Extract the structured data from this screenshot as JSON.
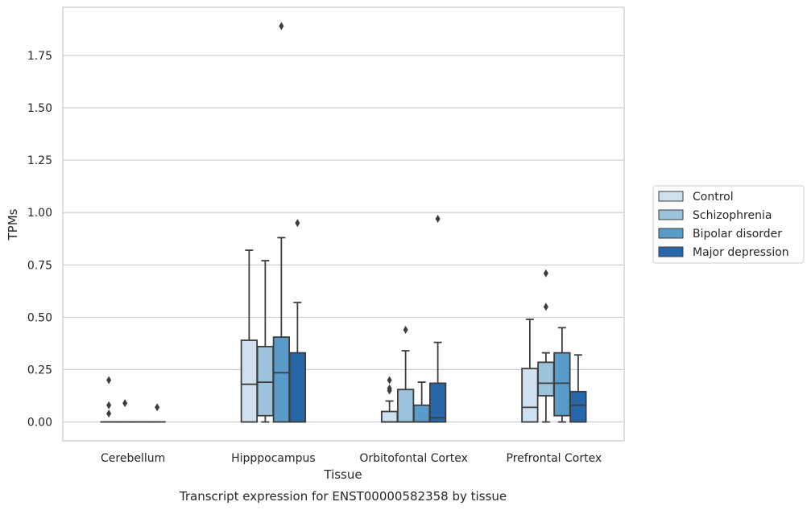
{
  "chart_data": {
    "type": "box",
    "xlabel": "Tissue",
    "ylabel": "TPMs",
    "caption": "Transcript expression for ENST00000582358 by tissue",
    "ylim": [
      -0.09,
      1.98
    ],
    "yticks": [
      0.0,
      0.25,
      0.5,
      0.75,
      1.0,
      1.25,
      1.5,
      1.75
    ],
    "ytick_labels": [
      "0.00",
      "0.25",
      "0.50",
      "0.75",
      "1.00",
      "1.25",
      "1.50",
      "1.75"
    ],
    "grid": true,
    "legend_position": "right",
    "categories": [
      "Cerebellum",
      "Hipppocampus",
      "Orbitofontal Cortex",
      "Prefrontal Cortex"
    ],
    "series": [
      {
        "name": "Control",
        "color": "#d0e0ef",
        "boxes": [
          {
            "whislo": 0.0,
            "q1": 0.0,
            "med": 0.0,
            "q3": 0.0,
            "whishi": 0.0,
            "fliers": [
              0.2,
              0.08,
              0.04
            ]
          },
          {
            "whislo": 0.0,
            "q1": 0.0,
            "med": 0.18,
            "q3": 0.39,
            "whishi": 0.82,
            "fliers": []
          },
          {
            "whislo": 0.0,
            "q1": 0.0,
            "med": 0.0,
            "q3": 0.05,
            "whishi": 0.1,
            "fliers": [
              0.2,
              0.16,
              0.15
            ]
          },
          {
            "whislo": 0.0,
            "q1": 0.0,
            "med": 0.07,
            "q3": 0.255,
            "whishi": 0.49,
            "fliers": []
          }
        ]
      },
      {
        "name": "Schizophrenia",
        "color": "#9cc3dc",
        "boxes": [
          {
            "whislo": 0.0,
            "q1": 0.0,
            "med": 0.0,
            "q3": 0.0,
            "whishi": 0.0,
            "fliers": [
              0.09
            ]
          },
          {
            "whislo": 0.0,
            "q1": 0.03,
            "med": 0.19,
            "q3": 0.36,
            "whishi": 0.77,
            "fliers": []
          },
          {
            "whislo": 0.0,
            "q1": 0.0,
            "med": 0.0,
            "q3": 0.155,
            "whishi": 0.34,
            "fliers": [
              0.44
            ]
          },
          {
            "whislo": 0.0,
            "q1": 0.125,
            "med": 0.185,
            "q3": 0.285,
            "whishi": 0.33,
            "fliers": [
              0.71,
              0.55
            ]
          }
        ]
      },
      {
        "name": "Bipolar disorder",
        "color": "#5a9cc9",
        "boxes": [
          {
            "whislo": 0.0,
            "q1": 0.0,
            "med": 0.0,
            "q3": 0.0,
            "whishi": 0.0,
            "fliers": []
          },
          {
            "whislo": 0.0,
            "q1": 0.0,
            "med": 0.235,
            "q3": 0.405,
            "whishi": 0.88,
            "fliers": [
              1.89
            ]
          },
          {
            "whislo": 0.0,
            "q1": 0.0,
            "med": 0.0,
            "q3": 0.08,
            "whishi": 0.19,
            "fliers": []
          },
          {
            "whislo": 0.0,
            "q1": 0.03,
            "med": 0.185,
            "q3": 0.33,
            "whishi": 0.45,
            "fliers": []
          }
        ]
      },
      {
        "name": "Major depression",
        "color": "#2666a9",
        "boxes": [
          {
            "whislo": 0.0,
            "q1": 0.0,
            "med": 0.0,
            "q3": 0.0,
            "whishi": 0.0,
            "fliers": [
              0.07
            ]
          },
          {
            "whislo": 0.0,
            "q1": 0.0,
            "med": 0.0,
            "q3": 0.33,
            "whishi": 0.57,
            "fliers": [
              0.95
            ]
          },
          {
            "whislo": 0.0,
            "q1": 0.0,
            "med": 0.02,
            "q3": 0.185,
            "whishi": 0.38,
            "fliers": [
              0.97
            ]
          },
          {
            "whislo": 0.0,
            "q1": 0.0,
            "med": 0.08,
            "q3": 0.145,
            "whishi": 0.32,
            "fliers": []
          }
        ]
      }
    ]
  }
}
